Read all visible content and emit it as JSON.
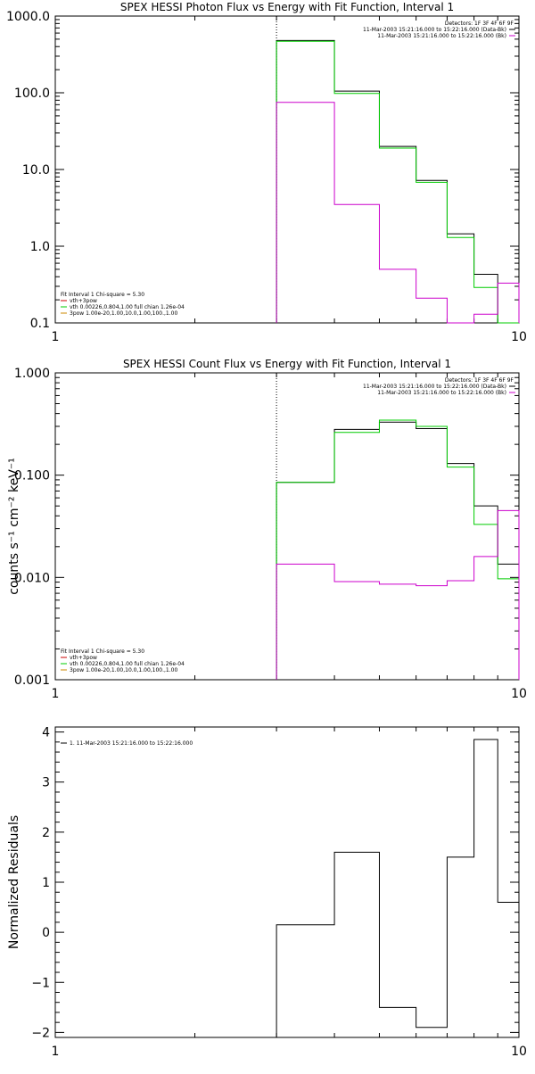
{
  "chart_data": [
    {
      "type": "line",
      "style": "step",
      "title": "SPEX HESSI Photon Flux vs Energy with Fit Function, Interval 1",
      "xlabel": "",
      "ylabel": "",
      "xscale": "log",
      "yscale": "log",
      "xlim": [
        1,
        10
      ],
      "ylim": [
        0.1,
        1000
      ],
      "x_ticks": [
        "1",
        "10"
      ],
      "y_ticks": [
        "1000.0",
        "100.0",
        "10.0",
        "1.0",
        "0.1"
      ],
      "y_tick_values": [
        1000,
        100,
        10,
        1,
        0.1
      ],
      "dotted_marker_x": 3,
      "bin_edges": [
        3,
        4,
        5,
        6,
        7,
        8,
        9,
        10
      ],
      "series": [
        {
          "color": "#000000",
          "values": [
            480,
            105,
            20,
            7.2,
            1.45,
            0.43,
            0.1
          ]
        },
        {
          "color": "#00cc00",
          "values": [
            470,
            98,
            19,
            6.8,
            1.3,
            0.29,
            0.09
          ]
        },
        {
          "color": "#cc00cc",
          "values": [
            75,
            3.5,
            0.5,
            0.21,
            0.095,
            0.13,
            0.33
          ]
        }
      ],
      "legend_right": [
        "Detectors: 1F 3F 4F 6F 9F",
        "11-Mar-2003 15:21:16.000 to 15:22:16.000 (Data-Bk)",
        "11-Mar-2003 15:21:16.000 to 15:22:16.000 (Bk)"
      ],
      "legend_left": [
        "Fit Interval 1   Chi-square = 5.30",
        "vth+3pow",
        "vth 0.00226,0.804,1.00  full chian 1.26e-04",
        "3pow 1.00e-20,1.00,10.0,1.00,100.,1.00"
      ]
    },
    {
      "type": "line",
      "style": "step",
      "title": "SPEX HESSI Count Flux vs Energy with Fit Function, Interval 1",
      "xlabel": "",
      "ylabel": "counts s⁻¹ cm⁻² keV⁻¹",
      "xscale": "log",
      "yscale": "log",
      "xlim": [
        1,
        10
      ],
      "ylim": [
        0.001,
        1
      ],
      "x_ticks": [
        "1",
        "10"
      ],
      "y_ticks": [
        "1.000",
        "0.100",
        "0.010",
        "0.001"
      ],
      "y_tick_values": [
        1,
        0.1,
        0.01,
        0.001
      ],
      "dotted_marker_x": 3,
      "bin_edges": [
        3,
        4,
        5,
        6,
        7,
        8,
        9,
        10
      ],
      "series": [
        {
          "color": "#000000",
          "values": [
            0.085,
            0.28,
            0.33,
            0.285,
            0.13,
            0.05,
            0.0135
          ]
        },
        {
          "color": "#00cc00",
          "values": [
            0.085,
            0.262,
            0.345,
            0.3,
            0.12,
            0.033,
            0.0097
          ]
        },
        {
          "color": "#cc00cc",
          "values": [
            0.0135,
            0.0091,
            0.0086,
            0.0083,
            0.0093,
            0.016,
            0.045
          ]
        }
      ],
      "legend_right": [
        "Detectors: 1F 3F 4F 6F 9F",
        "11-Mar-2003 15:21:16.000 to 15:22:16.000 (Data-Bk)",
        "11-Mar-2003 15:21:16.000 to 15:22:16.000 (Bk)"
      ],
      "legend_left": [
        "Fit Interval 1   Chi-square = 5.30",
        "vth+3pow",
        "vth 0.00226,0.804,1.00  full chian 1.26e-04",
        "3pow 1.00e-20,1.00,10.0,1.00,100.,1.00"
      ]
    },
    {
      "type": "line",
      "style": "step",
      "title": "",
      "xlabel": "",
      "ylabel": "Normalized Residuals",
      "xscale": "log",
      "yscale": "linear",
      "xlim": [
        1,
        10
      ],
      "ylim": [
        -2.1,
        4.1
      ],
      "x_ticks": [
        "1",
        "10"
      ],
      "y_ticks": [
        "4",
        "3",
        "2",
        "1",
        "0",
        "−1",
        "−2"
      ],
      "y_tick_values": [
        4,
        3,
        2,
        1,
        0,
        -1,
        -2
      ],
      "bin_edges": [
        3,
        4,
        5,
        6,
        7,
        8,
        9,
        10
      ],
      "series": [
        {
          "color": "#000000",
          "values": [
            0.15,
            1.6,
            -1.5,
            -1.9,
            1.5,
            3.85,
            0.6
          ]
        }
      ],
      "legend_left": [
        "1. 11-Mar-2003 15:21:16.000 to 15:22:16.000"
      ]
    }
  ]
}
